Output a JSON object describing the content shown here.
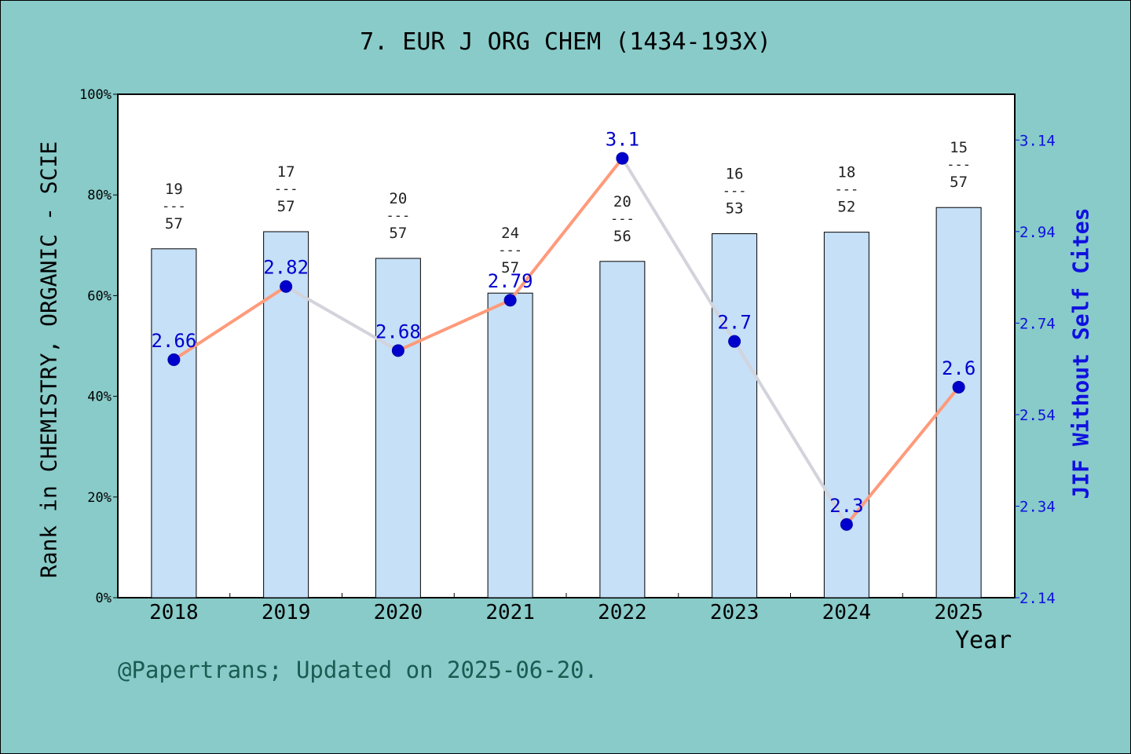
{
  "title": "7. EUR J ORG CHEM (1434-193X)",
  "footer": "@Papertrans; Updated on 2025-06-20.",
  "colors": {
    "background": "#88cbc9",
    "bar_fill": "#c5e0f7",
    "line_up": "#ff9a7a",
    "line_down": "#d3d3dc",
    "marker": "#0000cc",
    "right_axis": "#1010e0"
  },
  "chart_data": {
    "type": "bar+line",
    "categories": [
      "2018",
      "2019",
      "2020",
      "2021",
      "2022",
      "2023",
      "2024",
      "2025"
    ],
    "xlabel": "Year",
    "ylabel_left": "Rank in CHEMISTRY, ORGANIC - SCIE",
    "ylabel_right": "JIF Without Self Cites",
    "left_axis": {
      "ylim": [
        0,
        100
      ],
      "ticks": [
        "0%",
        "20%",
        "40%",
        "60%",
        "80%",
        "100%"
      ]
    },
    "right_axis": {
      "ylim": [
        2.14,
        3.24
      ],
      "ticks": [
        "2.14",
        "2.34",
        "2.54",
        "2.74",
        "2.94",
        "3.14"
      ]
    },
    "bars": {
      "values_percent": [
        69.3,
        72.7,
        67.4,
        60.5,
        66.8,
        72.3,
        72.6,
        77.5
      ],
      "rank_labels": [
        {
          "rank": "19",
          "sep": "---",
          "total": "57"
        },
        {
          "rank": "17",
          "sep": "---",
          "total": "57"
        },
        {
          "rank": "20",
          "sep": "---",
          "total": "57"
        },
        {
          "rank": "24",
          "sep": "---",
          "total": "57"
        },
        {
          "rank": "20",
          "sep": "---",
          "total": "56"
        },
        {
          "rank": "16",
          "sep": "---",
          "total": "53"
        },
        {
          "rank": "18",
          "sep": "---",
          "total": "52"
        },
        {
          "rank": "15",
          "sep": "---",
          "total": "57"
        }
      ]
    },
    "line": {
      "values": [
        2.66,
        2.82,
        2.68,
        2.79,
        3.1,
        2.7,
        2.3,
        2.6
      ],
      "labels": [
        "2.66",
        "2.82",
        "2.68",
        "2.79",
        "3.1",
        "2.7",
        "2.3",
        "2.6"
      ]
    },
    "grid": false,
    "legend": "none"
  }
}
